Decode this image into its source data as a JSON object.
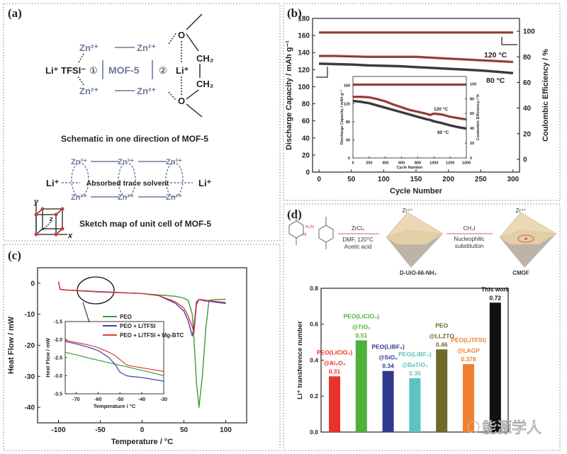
{
  "panels": {
    "a": "(a)",
    "b": "(b)",
    "c": "(c)",
    "d": "(d)"
  },
  "panel_a": {
    "zn": "Zn²⁺",
    "li_tfsi": "Li⁺ TFSI⁻",
    "site1": "①",
    "mof5": "MOF-5",
    "site2": "②",
    "li": "Li⁺",
    "o": "O",
    "ch2": "CH₂",
    "caption1": "Schematic in one  direction of MOF-5",
    "solvent": "Absorbed trace solvent",
    "caption2": "Sketch map of unit cell of MOF-5",
    "axis_x": "x",
    "axis_y": "y",
    "axis_z": "z"
  },
  "panel_d_scheme": {
    "reagent1": "ZrCl₄",
    "cond1": "DMF, 120°C",
    "cond2": "Acetic acid",
    "zr": "Zr⁴⁺",
    "reagent2": "CH₃I",
    "cond3": "Nucleophilic",
    "cond4": "substitution",
    "product1": "D-UiO-66-NH₂",
    "product2": "CMOF",
    "nh2": "H₂N",
    "colors": {
      "octahedron": "#ead9b4",
      "octahedron_shadow": "#bdb4a6",
      "highlight": "#d9534f"
    }
  },
  "watermark": "能源学人",
  "chart_data": [
    {
      "type": "line",
      "xlabel": "Cycle Number",
      "ylabel": "Discharge Capacity / mAh g⁻¹",
      "y2label": "Coulombic Efficiency / %",
      "xlim": [
        -10,
        310
      ],
      "ylim": [
        0,
        180
      ],
      "y2lim": [
        -10,
        110
      ],
      "xticks": [
        "0",
        "50",
        "100",
        "150",
        "200",
        "250",
        "300"
      ],
      "yticks": [
        "0",
        "20",
        "40",
        "60",
        "80",
        "100",
        "120",
        "140",
        "160",
        "180"
      ],
      "y2ticks": [
        "0",
        "20",
        "40",
        "60",
        "80",
        "100"
      ],
      "annotations": [
        "120 °C",
        "80 °C"
      ],
      "x": [
        0,
        25,
        50,
        75,
        100,
        125,
        150,
        175,
        200,
        225,
        250,
        275,
        300
      ],
      "series": [
        {
          "name": "120 °C",
          "axis": "left",
          "color": "#c0392b",
          "y": [
            136,
            136,
            135.5,
            135,
            135,
            135,
            135,
            134,
            133,
            132,
            131,
            130,
            129
          ]
        },
        {
          "name": "80 °C",
          "axis": "left",
          "color": "#222222",
          "y": [
            127,
            126.5,
            126,
            125,
            124.5,
            124,
            123,
            122,
            121,
            120,
            119,
            117.5,
            116
          ]
        },
        {
          "axis": "right",
          "color": "#c0392b",
          "y": [
            99,
            99,
            99,
            99,
            99,
            99,
            99,
            99,
            99,
            99,
            99,
            99,
            99
          ]
        }
      ]
    },
    {
      "type": "line",
      "xlabel": "Cycle Number",
      "ylabel": "Discharge Capacity / mAh g⁻¹",
      "y2label": "Coulombic Efficiency / %",
      "xlim": [
        0,
        1400
      ],
      "ylim": [
        0,
        180
      ],
      "y2lim": [
        0,
        110
      ],
      "xticks": [
        "0",
        "200",
        "400",
        "600",
        "800",
        "1000",
        "1200",
        "1400"
      ],
      "yticks": [
        "0",
        "40",
        "80",
        "120",
        "160"
      ],
      "y2ticks": [
        "0",
        "20",
        "40",
        "60",
        "80",
        "100"
      ],
      "annotations": [
        "120 °C",
        "80 °C"
      ],
      "x": [
        0,
        100,
        200,
        300,
        400,
        500,
        600,
        700,
        800,
        900,
        950,
        1000,
        1100,
        1200,
        1300,
        1400
      ],
      "series": [
        {
          "name": "120 °C",
          "axis": "left",
          "color": "#c0392b",
          "y": [
            135,
            135,
            134,
            130,
            125,
            118,
            112,
            106,
            102,
            98,
            95,
            98,
            96,
            91,
            88,
            85
          ]
        },
        {
          "name": "80 °C",
          "axis": "left",
          "color": "#222222",
          "y": [
            126,
            124,
            121,
            116,
            111,
            106,
            101,
            96,
            91,
            86,
            84,
            81,
            77,
            72,
            68,
            65
          ]
        },
        {
          "axis": "right",
          "color": "#c0392b",
          "y": [
            99,
            99,
            99,
            99,
            99,
            99,
            99,
            99,
            99,
            99,
            99,
            99,
            99,
            99,
            99,
            99
          ]
        }
      ]
    },
    {
      "type": "line",
      "xlabel": "Temperature / °C",
      "ylabel": "Heat Flow / mW",
      "xlim": [
        -125,
        125
      ],
      "ylim": [
        -45,
        5
      ],
      "xticks": [
        "-100",
        "-50",
        "0",
        "50",
        "100"
      ],
      "yticks": [
        "-40",
        "-30",
        "-20",
        "-10",
        "0"
      ],
      "legend": "center",
      "x": [
        -100,
        -98,
        -90,
        -50,
        0,
        20,
        40,
        50,
        55,
        60,
        62,
        65,
        68,
        72,
        76,
        80,
        90,
        100
      ],
      "series": [
        {
          "name": "PEO",
          "color": "#3c9a3c",
          "y": [
            0.5,
            -2,
            -2.2,
            -2.8,
            -3.3,
            -3.8,
            -4.2,
            -4.8,
            -5.5,
            -10,
            -18,
            -32,
            -40,
            -30,
            -15,
            -5.5,
            -5.2,
            -5.2
          ]
        },
        {
          "name": "PEO + LiTFSI",
          "color": "#3f3fa8",
          "y": [
            0.5,
            -2,
            -2.2,
            -2.8,
            -3.3,
            -4,
            -6.5,
            -9,
            -12,
            -17,
            -14,
            -6,
            -5.2,
            -5.5,
            -5.7,
            -5.8,
            -6.2,
            -6.5
          ]
        },
        {
          "name": "PEO + LiTFSI + Mg-BTC",
          "color": "#e03a3a",
          "y": [
            0.5,
            -2,
            -2.2,
            -2.7,
            -3.3,
            -4,
            -6,
            -8,
            -10.5,
            -14,
            -16,
            -7,
            -5.2,
            -5.3,
            -5.5,
            -5.6,
            -5.9,
            -6.2
          ]
        }
      ]
    },
    {
      "type": "line",
      "xlabel": "Temperature / °C",
      "ylabel": "Heat Flow / mW",
      "xlim": [
        -75,
        -30
      ],
      "ylim": [
        -3.5,
        -1.5
      ],
      "xticks": [
        "-70",
        "-60",
        "-50",
        "-40",
        "-30"
      ],
      "yticks": [
        "-3.5",
        "-3.0",
        "-2.5",
        "-2.0",
        "-1.5"
      ],
      "x": [
        -75,
        -70,
        -65,
        -60,
        -55,
        -52,
        -50,
        -47,
        -45,
        -40,
        -35,
        -30
      ],
      "series": [
        {
          "name": "PEO",
          "color": "#3c9a3c",
          "y": [
            -2.35,
            -2.42,
            -2.5,
            -2.57,
            -2.64,
            -2.68,
            -2.71,
            -2.75,
            -2.78,
            -2.85,
            -2.92,
            -3.0
          ]
        },
        {
          "name": "PEO + LiTFSI",
          "color": "#3f3fa8",
          "y": [
            -2.05,
            -2.12,
            -2.2,
            -2.3,
            -2.5,
            -2.7,
            -2.9,
            -3.0,
            -3.02,
            -3.05,
            -3.1,
            -3.15
          ]
        },
        {
          "name": "PEO + LiTFSI + Mg-BTC",
          "color": "#e03a3a",
          "y": [
            -2.02,
            -2.08,
            -2.14,
            -2.22,
            -2.35,
            -2.45,
            -2.55,
            -2.7,
            -2.73,
            -2.78,
            -2.83,
            -2.88
          ]
        }
      ]
    },
    {
      "type": "bar",
      "ylabel": "Li⁺ transference number",
      "ylim": [
        0,
        0.8
      ],
      "yticks": [
        "0.0",
        "0.2",
        "0.4",
        "0.6",
        "0.8"
      ],
      "bars": [
        {
          "label": [
            "PEO(LiClO₄)",
            "@Al₂O₃"
          ],
          "value": 0.31,
          "value_label": "0.31",
          "color": "#e8322b"
        },
        {
          "label": [
            "PEO(LiClO₄)",
            "@TiO₂"
          ],
          "value": 0.51,
          "value_label": "0.51",
          "color": "#4fb03a"
        },
        {
          "label": [
            "PEO(LiBF₄)",
            "@SiO₂"
          ],
          "value": 0.34,
          "value_label": "0.34",
          "color": "#2f3a8f"
        },
        {
          "label": [
            "PEO(LiBF₄)",
            "@BaTiO₃"
          ],
          "value": 0.3,
          "value_label": "0.30",
          "color": "#5cc3c0"
        },
        {
          "label": [
            "PEO",
            "@LLZTO"
          ],
          "value": 0.46,
          "value_label": "0.46",
          "color": "#6f6a2a"
        },
        {
          "label": [
            "PEO(LiTFSI)",
            "@LAGP"
          ],
          "value": 0.378,
          "value_label": "0.378",
          "color": "#f08030"
        },
        {
          "label": [
            "This work"
          ],
          "value": 0.72,
          "value_label": "0.72",
          "color": "#111111"
        }
      ]
    }
  ]
}
